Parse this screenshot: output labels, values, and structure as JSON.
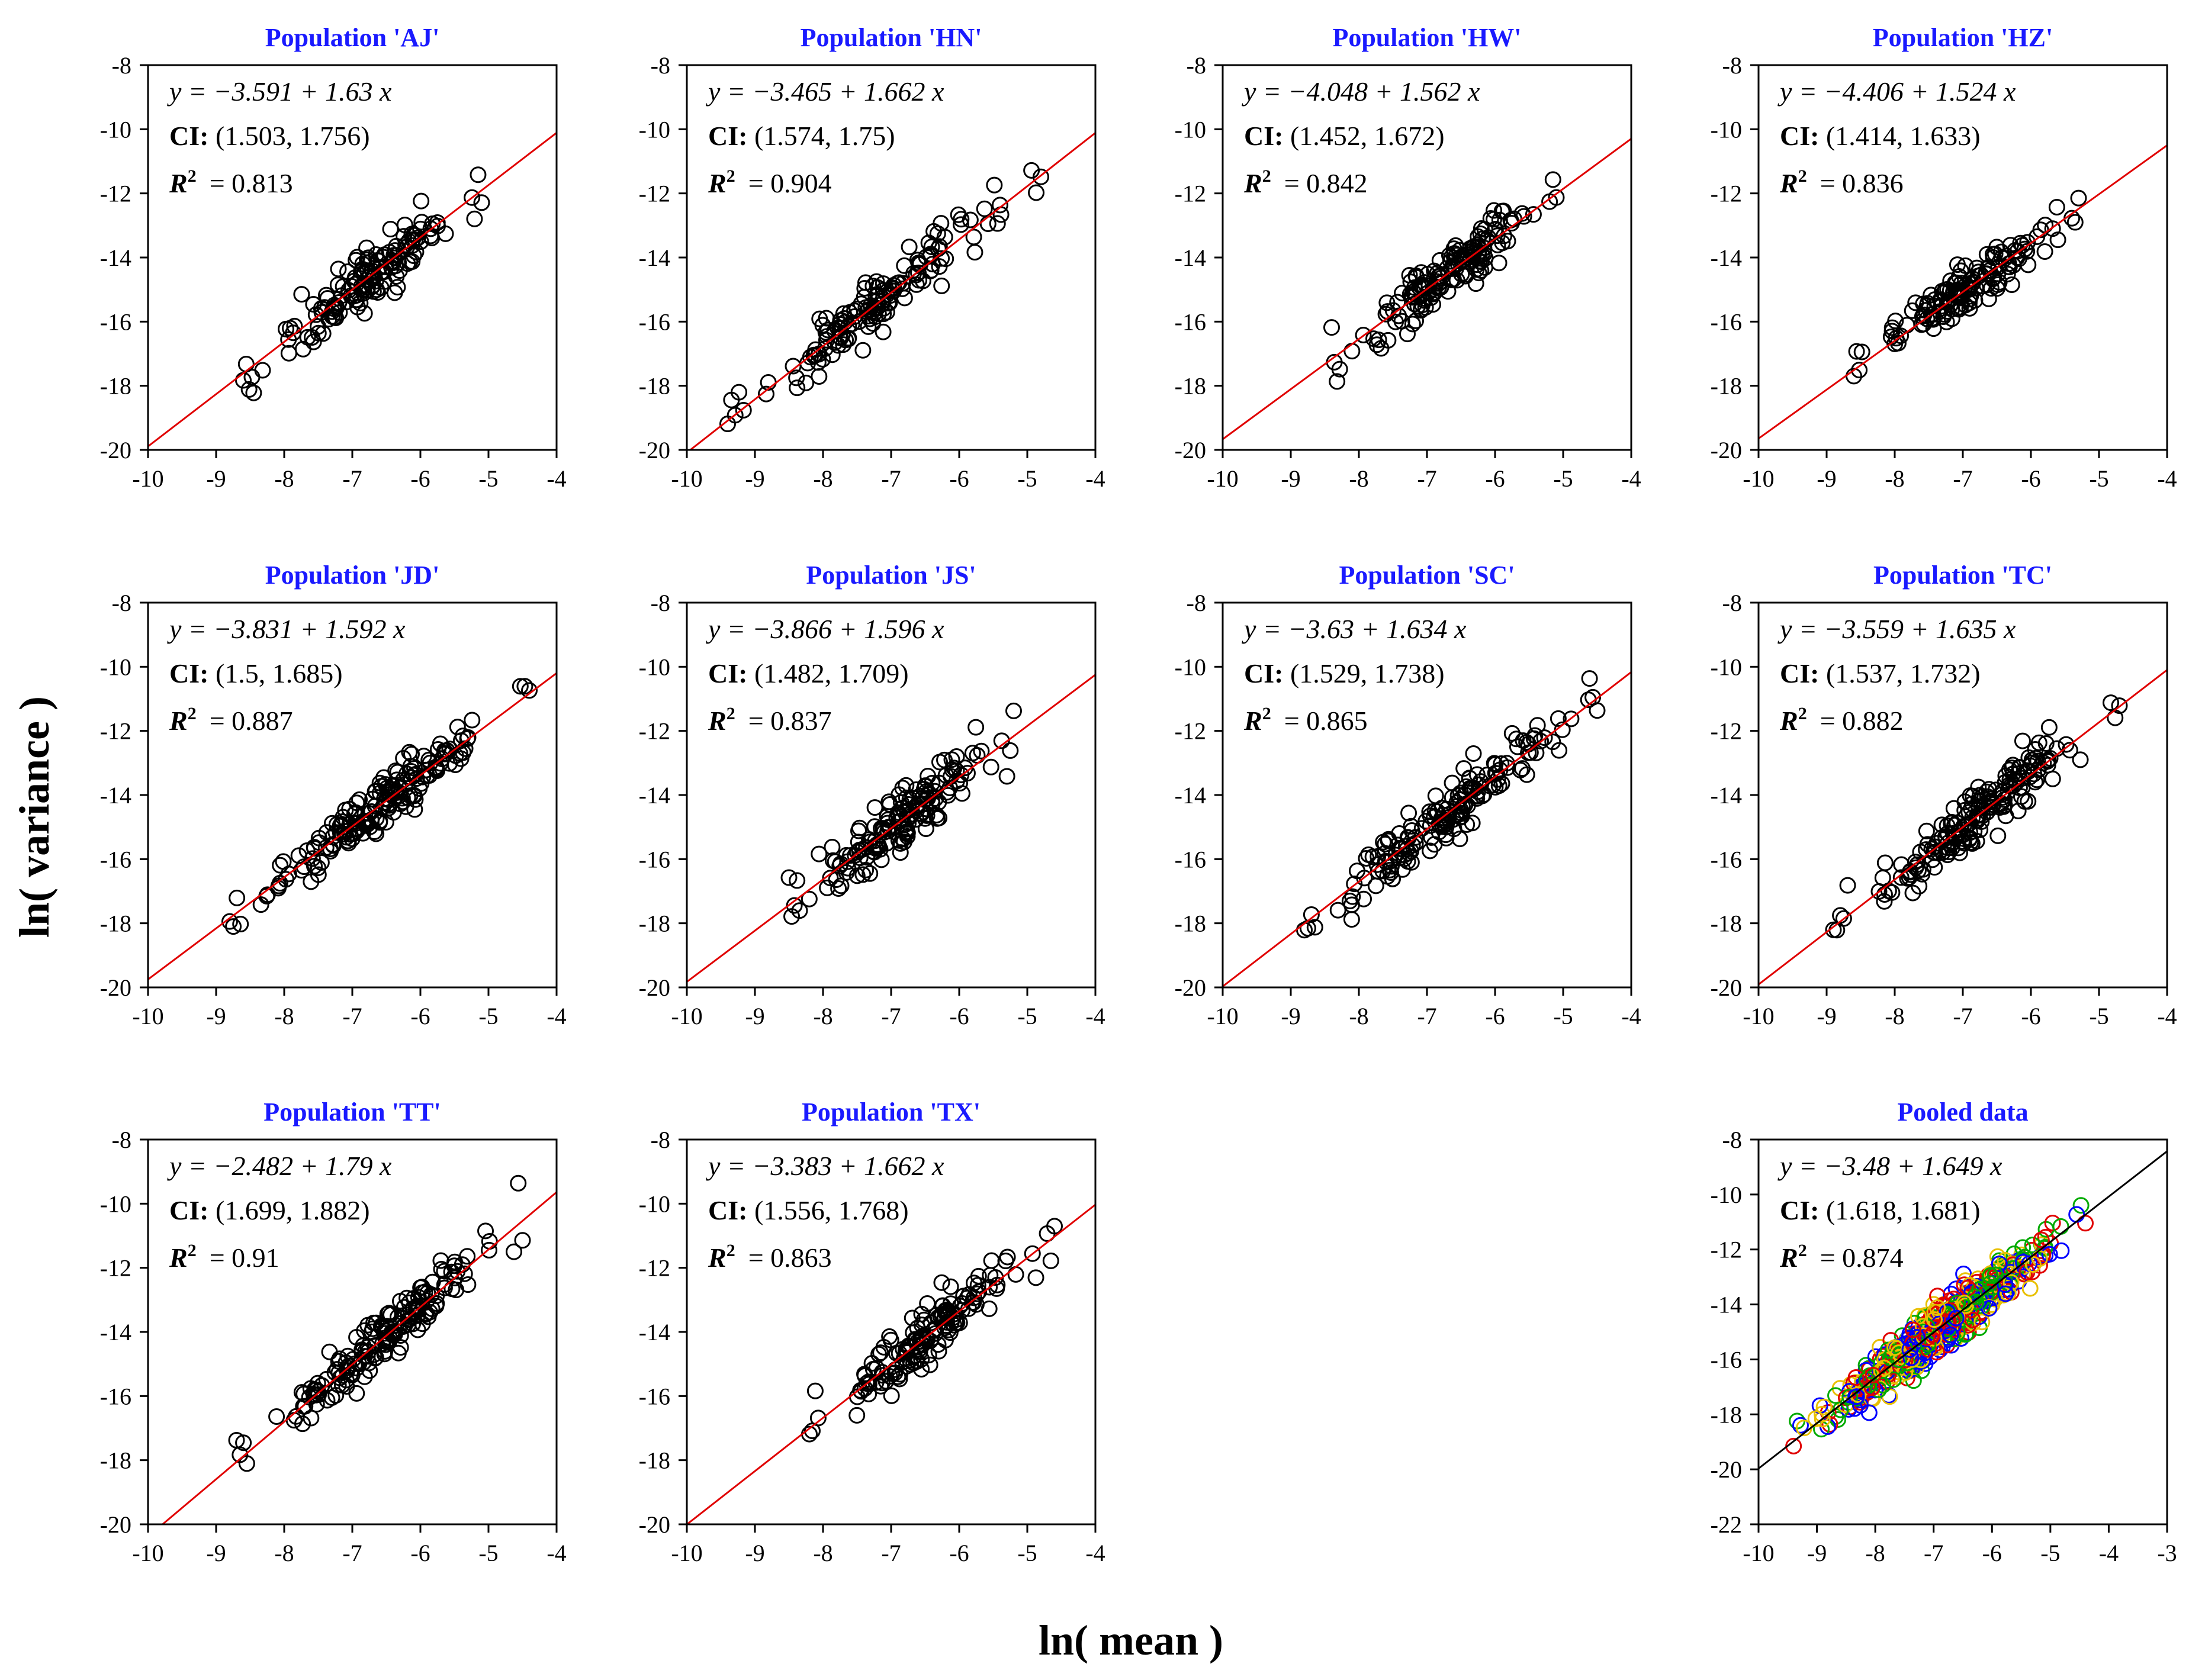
{
  "figure": {
    "ylabel": "ln( variance )",
    "xlabel": "ln( mean )"
  },
  "chart_data": [
    {
      "type": "scatter",
      "title": "Population 'AJ'",
      "equation": "y = −3.591 + 1.63 x",
      "intercept": -3.591,
      "slope": 1.63,
      "ci": "(1.503, 1.756)",
      "r2": "0.813",
      "xlim": [
        -10,
        -4
      ],
      "ylim": [
        -20,
        -8
      ],
      "xticks": [
        -10,
        -9,
        -8,
        -7,
        -6,
        -5,
        -4
      ],
      "yticks": [
        -8,
        -10,
        -12,
        -14,
        -16,
        -18,
        -20
      ],
      "x_range": [
        -8.6,
        -5.1
      ],
      "n_points": 150,
      "scatter_sd": 0.45,
      "seed": 11,
      "line_color": "#e00000",
      "point_color": "#000000"
    },
    {
      "type": "scatter",
      "title": "Population 'HN'",
      "equation": "y = −3.465 + 1.662 x",
      "intercept": -3.465,
      "slope": 1.662,
      "ci": "(1.574, 1.75)",
      "r2": "0.904",
      "xlim": [
        -10,
        -4
      ],
      "ylim": [
        -20,
        -8
      ],
      "xticks": [
        -10,
        -9,
        -8,
        -7,
        -6,
        -5,
        -4
      ],
      "yticks": [
        -8,
        -10,
        -12,
        -14,
        -16,
        -18,
        -20
      ],
      "x_range": [
        -9.4,
        -4.8
      ],
      "n_points": 150,
      "scatter_sd": 0.38,
      "seed": 23,
      "line_color": "#e00000",
      "point_color": "#000000"
    },
    {
      "type": "scatter",
      "title": "Population 'HW'",
      "equation": "y = −4.048 + 1.562 x",
      "intercept": -4.048,
      "slope": 1.562,
      "ci": "(1.452, 1.672)",
      "r2": "0.842",
      "xlim": [
        -10,
        -4
      ],
      "ylim": [
        -20,
        -8
      ],
      "xticks": [
        -10,
        -9,
        -8,
        -7,
        -6,
        -5,
        -4
      ],
      "yticks": [
        -8,
        -10,
        -12,
        -14,
        -16,
        -18,
        -20
      ],
      "x_range": [
        -8.4,
        -5.1
      ],
      "n_points": 150,
      "scatter_sd": 0.4,
      "seed": 37,
      "line_color": "#e00000",
      "point_color": "#000000"
    },
    {
      "type": "scatter",
      "title": "Population 'HZ'",
      "equation": "y = −4.406 + 1.524 x",
      "intercept": -4.406,
      "slope": 1.524,
      "ci": "(1.414, 1.633)",
      "r2": "0.836",
      "xlim": [
        -10,
        -4
      ],
      "ylim": [
        -20,
        -8
      ],
      "xticks": [
        -10,
        -9,
        -8,
        -7,
        -6,
        -5,
        -4
      ],
      "yticks": [
        -8,
        -10,
        -12,
        -14,
        -16,
        -18,
        -20
      ],
      "x_range": [
        -8.6,
        -5.3
      ],
      "n_points": 150,
      "scatter_sd": 0.4,
      "seed": 41,
      "line_color": "#e00000",
      "point_color": "#000000"
    },
    {
      "type": "scatter",
      "title": "Population 'JD'",
      "equation": "y = −3.831 + 1.592 x",
      "intercept": -3.831,
      "slope": 1.592,
      "ci": "(1.5, 1.685)",
      "r2": "0.887",
      "xlim": [
        -10,
        -4
      ],
      "ylim": [
        -20,
        -8
      ],
      "xticks": [
        -10,
        -9,
        -8,
        -7,
        -6,
        -5,
        -4
      ],
      "yticks": [
        -8,
        -10,
        -12,
        -14,
        -16,
        -18,
        -20
      ],
      "x_range": [
        -8.8,
        -4.4
      ],
      "n_points": 180,
      "scatter_sd": 0.4,
      "seed": 53,
      "line_color": "#e00000",
      "point_color": "#000000"
    },
    {
      "type": "scatter",
      "title": "Population 'JS'",
      "equation": "y = −3.866 + 1.596 x",
      "intercept": -3.866,
      "slope": 1.596,
      "ci": "(1.482, 1.709)",
      "r2": "0.837",
      "xlim": [
        -10,
        -4
      ],
      "ylim": [
        -20,
        -8
      ],
      "xticks": [
        -10,
        -9,
        -8,
        -7,
        -6,
        -5,
        -4
      ],
      "yticks": [
        -8,
        -10,
        -12,
        -14,
        -16,
        -18,
        -20
      ],
      "x_range": [
        -8.5,
        -5.2
      ],
      "n_points": 160,
      "scatter_sd": 0.45,
      "seed": 67,
      "line_color": "#e00000",
      "point_color": "#000000"
    },
    {
      "type": "scatter",
      "title": "Population 'SC'",
      "equation": "y = −3.63 + 1.634 x",
      "intercept": -3.63,
      "slope": 1.634,
      "ci": "(1.529, 1.738)",
      "r2": "0.865",
      "xlim": [
        -10,
        -4
      ],
      "ylim": [
        -20,
        -8
      ],
      "xticks": [
        -10,
        -9,
        -8,
        -7,
        -6,
        -5,
        -4
      ],
      "yticks": [
        -8,
        -10,
        -12,
        -14,
        -16,
        -18,
        -20
      ],
      "x_range": [
        -8.8,
        -4.5
      ],
      "n_points": 170,
      "scatter_sd": 0.45,
      "seed": 71,
      "line_color": "#e00000",
      "point_color": "#000000"
    },
    {
      "type": "scatter",
      "title": "Population 'TC'",
      "equation": "y = −3.559 + 1.635 x",
      "intercept": -3.559,
      "slope": 1.635,
      "ci": "(1.537, 1.732)",
      "r2": "0.882",
      "xlim": [
        -10,
        -4
      ],
      "ylim": [
        -20,
        -8
      ],
      "xticks": [
        -10,
        -9,
        -8,
        -7,
        -6,
        -5,
        -4
      ],
      "yticks": [
        -8,
        -10,
        -12,
        -14,
        -16,
        -18,
        -20
      ],
      "x_range": [
        -8.9,
        -4.7
      ],
      "n_points": 180,
      "scatter_sd": 0.4,
      "seed": 83,
      "line_color": "#e00000",
      "point_color": "#000000"
    },
    {
      "type": "scatter",
      "title": "Population 'TT'",
      "equation": "y = −2.482 + 1.79 x",
      "intercept": -2.482,
      "slope": 1.79,
      "ci": "(1.699, 1.882)",
      "r2": "0.91",
      "xlim": [
        -10,
        -4
      ],
      "ylim": [
        -20,
        -8
      ],
      "xticks": [
        -10,
        -9,
        -8,
        -7,
        -6,
        -5,
        -4
      ],
      "yticks": [
        -8,
        -10,
        -12,
        -14,
        -16,
        -18,
        -20
      ],
      "x_range": [
        -8.7,
        -4.5
      ],
      "n_points": 170,
      "scatter_sd": 0.42,
      "seed": 97,
      "line_color": "#e00000",
      "point_color": "#000000"
    },
    {
      "type": "scatter",
      "title": "Population 'TX'",
      "equation": "y = −3.383 + 1.662 x",
      "intercept": -3.383,
      "slope": 1.662,
      "ci": "(1.556, 1.768)",
      "r2": "0.863",
      "xlim": [
        -10,
        -4
      ],
      "ylim": [
        -20,
        -8
      ],
      "xticks": [
        -10,
        -9,
        -8,
        -7,
        -6,
        -5,
        -4
      ],
      "yticks": [
        -8,
        -10,
        -12,
        -14,
        -16,
        -18,
        -20
      ],
      "x_range": [
        -8.2,
        -4.6
      ],
      "n_points": 150,
      "scatter_sd": 0.4,
      "seed": 101,
      "line_color": "#e00000",
      "point_color": "#000000"
    },
    {
      "type": "scatter",
      "title": "Pooled data",
      "equation": "y = −3.48 + 1.649 x",
      "intercept": -3.48,
      "slope": 1.649,
      "ci": "(1.618, 1.681)",
      "r2": "0.874",
      "xlim": [
        -10,
        -3
      ],
      "ylim": [
        -22,
        -8
      ],
      "xticks": [
        -10,
        -9,
        -8,
        -7,
        -6,
        -5,
        -4,
        -3
      ],
      "yticks": [
        -8,
        -10,
        -12,
        -14,
        -16,
        -18,
        -20,
        -22
      ],
      "x_range": [
        -9.4,
        -4.4
      ],
      "n_points": 600,
      "scatter_sd": 0.42,
      "seed": 131,
      "line_color": "#000000",
      "point_colors": [
        "#e00000",
        "#00aa00",
        "#0000ff",
        "#e8c000"
      ]
    }
  ]
}
